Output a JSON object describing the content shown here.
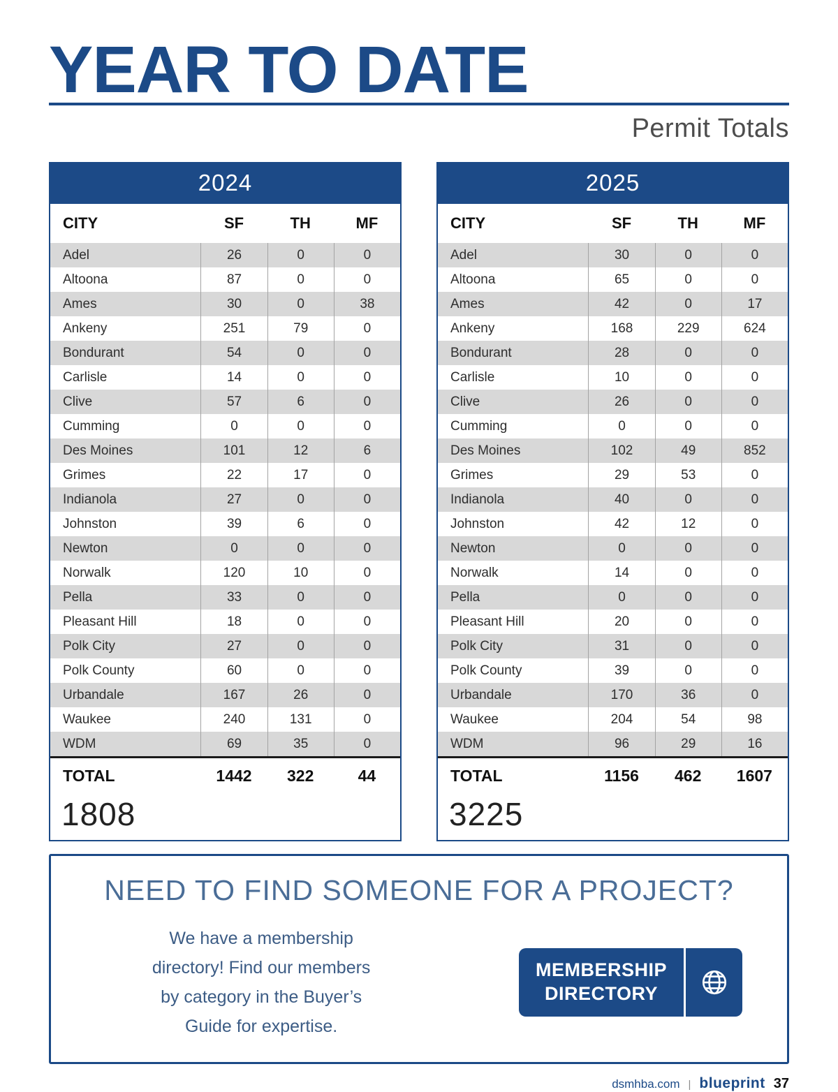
{
  "page": {
    "title": "YEAR TO DATE",
    "subtitle": "Permit Totals"
  },
  "tables": [
    {
      "year": "2024",
      "columns": [
        "CITY",
        "SF",
        "TH",
        "MF"
      ],
      "rows": [
        {
          "city": "Adel",
          "sf": 26,
          "th": 0,
          "mf": 0
        },
        {
          "city": "Altoona",
          "sf": 87,
          "th": 0,
          "mf": 0
        },
        {
          "city": "Ames",
          "sf": 30,
          "th": 0,
          "mf": 38
        },
        {
          "city": "Ankeny",
          "sf": 251,
          "th": 79,
          "mf": 0
        },
        {
          "city": "Bondurant",
          "sf": 54,
          "th": 0,
          "mf": 0
        },
        {
          "city": "Carlisle",
          "sf": 14,
          "th": 0,
          "mf": 0
        },
        {
          "city": "Clive",
          "sf": 57,
          "th": 6,
          "mf": 0
        },
        {
          "city": "Cumming",
          "sf": 0,
          "th": 0,
          "mf": 0
        },
        {
          "city": "Des Moines",
          "sf": 101,
          "th": 12,
          "mf": 6
        },
        {
          "city": "Grimes",
          "sf": 22,
          "th": 17,
          "mf": 0
        },
        {
          "city": "Indianola",
          "sf": 27,
          "th": 0,
          "mf": 0
        },
        {
          "city": "Johnston",
          "sf": 39,
          "th": 6,
          "mf": 0
        },
        {
          "city": "Newton",
          "sf": 0,
          "th": 0,
          "mf": 0
        },
        {
          "city": "Norwalk",
          "sf": 120,
          "th": 10,
          "mf": 0
        },
        {
          "city": "Pella",
          "sf": 33,
          "th": 0,
          "mf": 0
        },
        {
          "city": "Pleasant Hill",
          "sf": 18,
          "th": 0,
          "mf": 0
        },
        {
          "city": "Polk City",
          "sf": 27,
          "th": 0,
          "mf": 0
        },
        {
          "city": "Polk County",
          "sf": 60,
          "th": 0,
          "mf": 0
        },
        {
          "city": "Urbandale",
          "sf": 167,
          "th": 26,
          "mf": 0
        },
        {
          "city": "Waukee",
          "sf": 240,
          "th": 131,
          "mf": 0
        },
        {
          "city": "WDM",
          "sf": 69,
          "th": 35,
          "mf": 0
        }
      ],
      "total_label": "TOTAL",
      "totals": [
        "1442",
        "322",
        "44"
      ],
      "grand_total": "1808"
    },
    {
      "year": "2025",
      "columns": [
        "CITY",
        "SF",
        "TH",
        "MF"
      ],
      "rows": [
        {
          "city": "Adel",
          "sf": 30,
          "th": 0,
          "mf": 0
        },
        {
          "city": "Altoona",
          "sf": 65,
          "th": 0,
          "mf": 0
        },
        {
          "city": "Ames",
          "sf": 42,
          "th": 0,
          "mf": 17
        },
        {
          "city": "Ankeny",
          "sf": 168,
          "th": 229,
          "mf": 624
        },
        {
          "city": "Bondurant",
          "sf": 28,
          "th": 0,
          "mf": 0
        },
        {
          "city": "Carlisle",
          "sf": 10,
          "th": 0,
          "mf": 0
        },
        {
          "city": "Clive",
          "sf": 26,
          "th": 0,
          "mf": 0
        },
        {
          "city": "Cumming",
          "sf": 0,
          "th": 0,
          "mf": 0
        },
        {
          "city": "Des Moines",
          "sf": 102,
          "th": 49,
          "mf": 852
        },
        {
          "city": "Grimes",
          "sf": 29,
          "th": 53,
          "mf": 0
        },
        {
          "city": "Indianola",
          "sf": 40,
          "th": 0,
          "mf": 0
        },
        {
          "city": "Johnston",
          "sf": 42,
          "th": 12,
          "mf": 0
        },
        {
          "city": "Newton",
          "sf": 0,
          "th": 0,
          "mf": 0
        },
        {
          "city": "Norwalk",
          "sf": 14,
          "th": 0,
          "mf": 0
        },
        {
          "city": "Pella",
          "sf": 0,
          "th": 0,
          "mf": 0
        },
        {
          "city": "Pleasant Hill",
          "sf": 20,
          "th": 0,
          "mf": 0
        },
        {
          "city": "Polk City",
          "sf": 31,
          "th": 0,
          "mf": 0
        },
        {
          "city": "Polk County",
          "sf": 39,
          "th": 0,
          "mf": 0
        },
        {
          "city": "Urbandale",
          "sf": 170,
          "th": 36,
          "mf": 0
        },
        {
          "city": "Waukee",
          "sf": 204,
          "th": 54,
          "mf": 98
        },
        {
          "city": "WDM",
          "sf": 96,
          "th": 29,
          "mf": 16
        }
      ],
      "total_label": "TOTAL",
      "totals": [
        "1156",
        "462",
        "1607"
      ],
      "grand_total": "3225"
    }
  ],
  "cta": {
    "heading": "NEED TO FIND SOMEONE FOR A PROJECT?",
    "body": "We have a membership\ndirectory! Find our members\nby category in the Buyer’s\nGuide for expertise.",
    "button_line1": "MEMBERSHIP",
    "button_line2": "DIRECTORY",
    "globe_icon": "globe-icon"
  },
  "footer": {
    "site": "dsmhba.com",
    "separator": "|",
    "brand": "blueprint",
    "page_number": "37"
  },
  "colors": {
    "navy": "#1c4a87",
    "row_alt": "#d8d8d8",
    "heading_blue": "#4a6d97",
    "body_blue": "#3c5c85"
  }
}
